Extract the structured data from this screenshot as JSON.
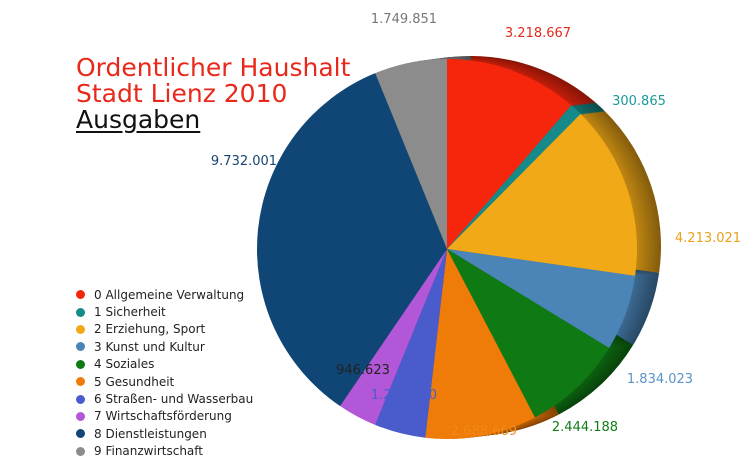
{
  "header": {
    "title_line1": "Ordentlicher Haushalt",
    "title_line2": "Stadt Lienz 2010",
    "title_line3": "Ausgaben"
  },
  "chart_data": {
    "type": "pie",
    "title": "Ordentlicher Haushalt Stadt Lienz 2010 Ausgaben",
    "legend_position": "left",
    "slices": [
      {
        "label": "0 Allgemeine Verwaltung",
        "value": 3218667,
        "value_label": "3.218.667",
        "color": "#f6260d",
        "label_color": "#e8281a"
      },
      {
        "label": "1 Sicherheit",
        "value": 300865,
        "value_label": "300.865",
        "color": "#168a88",
        "label_color": "#1a9a98"
      },
      {
        "label": "2 Erziehung, Sport",
        "value": 4213021,
        "value_label": "4.213.021",
        "color": "#f2a917",
        "label_color": "#e9a21a"
      },
      {
        "label": "3 Kunst und Kultur",
        "value": 1834023,
        "value_label": "1.834.023",
        "color": "#4b85b8",
        "label_color": "#5a94c8"
      },
      {
        "label": "4 Soziales",
        "value": 2444188,
        "value_label": "2.444.188",
        "color": "#0f7a14",
        "label_color": "#127d18"
      },
      {
        "label": "5 Gesundheit",
        "value": 2688669,
        "value_label": "2.688.669",
        "color": "#ef7b08",
        "label_color": "#f08a16"
      },
      {
        "label": "6 Straßen- und Wasserbau",
        "value": 1236450,
        "value_label": "1.236.450",
        "color": "#4a5ccb",
        "label_color": "#4a5ccb"
      },
      {
        "label": "7 Wirtschaftsförderung",
        "value": 946623,
        "value_label": "946.623",
        "color": "#b257d8",
        "label_color": "#222222"
      },
      {
        "label": "8 Dienstleistungen",
        "value": 9732001,
        "value_label": "9.732.001",
        "color": "#0f4675",
        "label_color": "#17456f"
      },
      {
        "label": "9 Finanzwirtschaft",
        "value": 1749851,
        "value_label": "1.749.851",
        "color": "#8c8c8c",
        "label_color": "#777777"
      }
    ]
  }
}
